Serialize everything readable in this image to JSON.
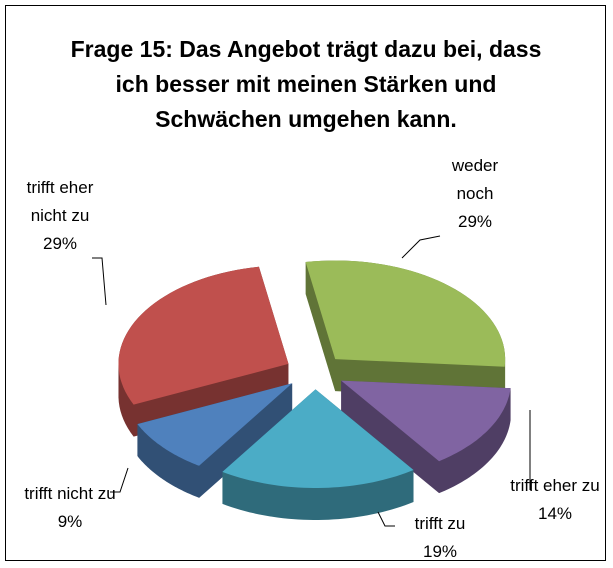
{
  "chart_data": {
    "type": "pie3d",
    "title": "Frage 15: Das Angebot trägt dazu bei, dass ich besser mit meinen Stärken und Schwächen umgehen kann.",
    "categories": [
      "weder noch",
      "trifft eher zu",
      "trifft zu",
      "trifft nicht zu",
      "trifft eher nicht zu"
    ],
    "values": [
      29,
      14,
      19,
      9,
      29
    ],
    "value_labels": [
      "29%",
      "14%",
      "19%",
      "9%",
      "29%"
    ],
    "colors": [
      "#9bbb59",
      "#8064a2",
      "#4bacc6",
      "#4f81bd",
      "#c0504d"
    ]
  }
}
